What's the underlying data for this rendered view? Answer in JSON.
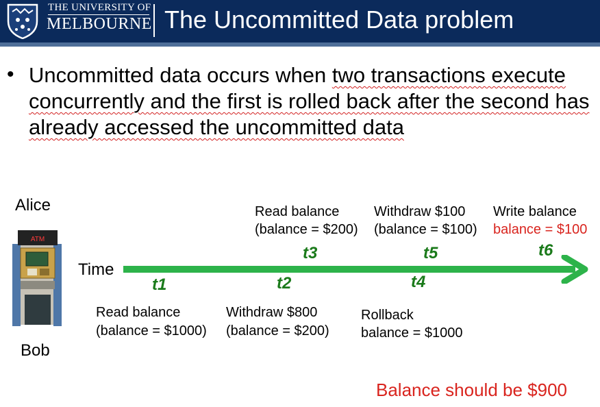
{
  "header": {
    "university_line1": "THE UNIVERSITY OF",
    "university_line2": "MELBOURNE",
    "title": "The Uncommitted Data problem"
  },
  "body": {
    "bullet": "•",
    "text_1": "Uncommitted data occurs when ",
    "text_2": "two transactions execute concurrently and the first is rolled back after the second has already accessed the uncommitted data"
  },
  "diagram": {
    "alice": "Alice",
    "bob": "Bob",
    "time_label": "Time",
    "atm_label": "ATM",
    "ticks": [
      "t1",
      "t2",
      "t3",
      "t4",
      "t5",
      "t6"
    ],
    "alice_events": [
      {
        "line1": "Read balance",
        "line2": "(balance = $200)"
      },
      {
        "line1": "Withdraw $100",
        "line2": "(balance = $100)"
      },
      {
        "line1": "Write balance",
        "line2": "balance = $100"
      }
    ],
    "bob_events": [
      {
        "line1": "Read balance",
        "line2": "(balance = $1000)"
      },
      {
        "line1": "Withdraw $800",
        "line2": "(balance = $200)"
      },
      {
        "line1": "Rollback",
        "line2": "balance = $1000"
      }
    ],
    "note": "Balance should be $900",
    "colors": {
      "arrow": "#2db34a",
      "tick": "#1a7a1a",
      "highlight": "#d9241e",
      "header": "#0b2a5b"
    }
  }
}
